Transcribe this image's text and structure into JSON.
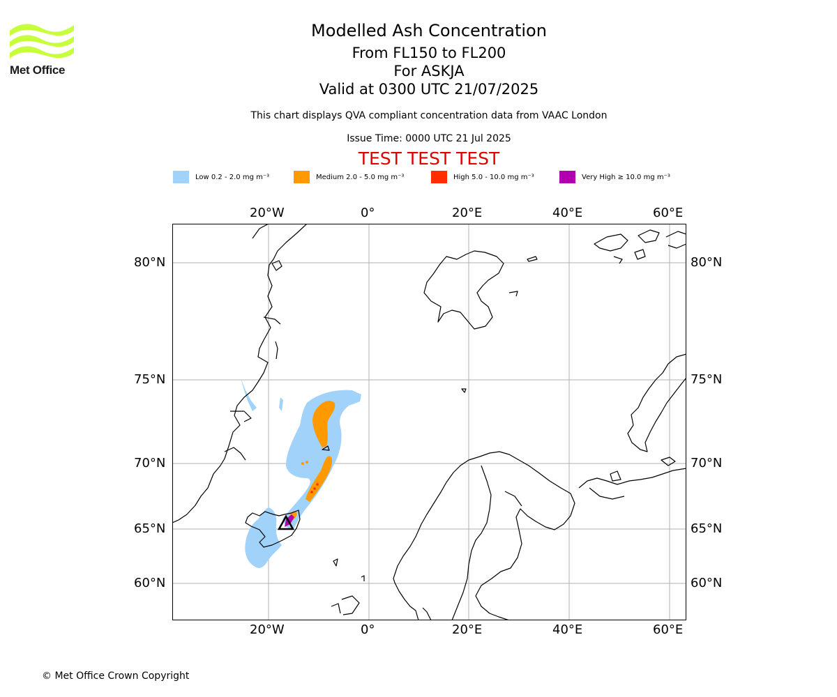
{
  "logo": {
    "text": "Met Office",
    "color": "#c8ff3c"
  },
  "titles": {
    "main": "Modelled Ash Concentration",
    "levels": "From FL150 to FL200",
    "volcano": "For ASKJA",
    "valid": "Valid at 0300 UTC 21/07/2025",
    "description": "This chart displays QVA compliant concentration data from VAAC London",
    "issue_time": "Issue Time: 0000 UTC 21 Jul 2025",
    "test_banner": "TEST TEST TEST"
  },
  "legend": [
    {
      "label": "Low 0.2 - 2.0 mg m⁻³",
      "color": "#a0d2fa"
    },
    {
      "label": "Medium 2.0 - 5.0 mg m⁻³",
      "color": "#ff9900"
    },
    {
      "label": "High 5.0 - 10.0 mg m⁻³",
      "color": "#ff2d00"
    },
    {
      "label": "Very High  ≥  10.0 mg m⁻³",
      "color": "#b000b0"
    }
  ],
  "map": {
    "lon_ticks": [
      "20°W",
      "0°",
      "20°E",
      "40°E",
      "60°E"
    ],
    "lat_ticks": [
      "80°N",
      "75°N",
      "70°N",
      "65°N",
      "60°N"
    ],
    "gridlines": true,
    "volcano_marker": "triangle",
    "volcano_icon": "volcano-triangle-icon"
  },
  "footer": {
    "copyright": "© Met Office Crown Copyright"
  }
}
